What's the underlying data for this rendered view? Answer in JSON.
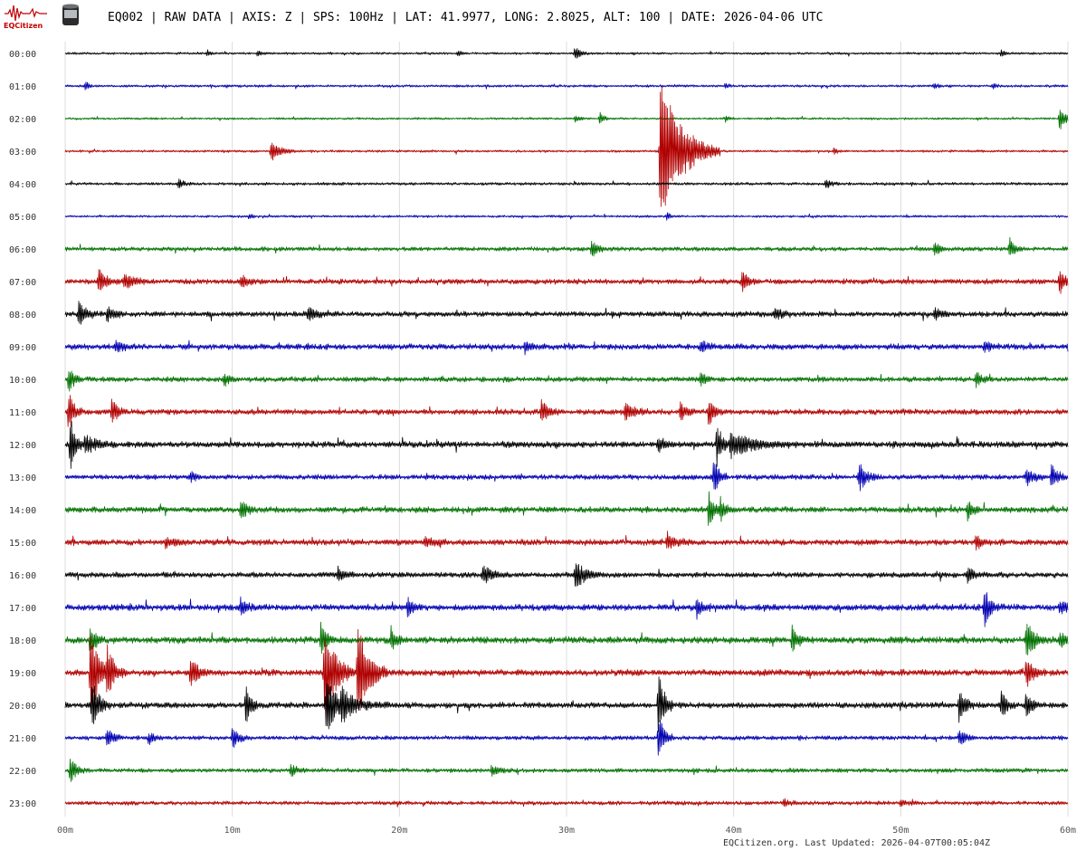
{
  "header": {
    "logo_text": "EQCitizen",
    "title": "EQ002 | RAW DATA | AXIS: Z | SPS: 100Hz | LAT: 41.9977, LONG: 2.8025, ALT: 100 | DATE: 2026-04-06 UTC",
    "logo_color": "#c00000"
  },
  "footer": {
    "text": "EQCitizen.org. Last Updated: 2026-04-07T00:05:04Z"
  },
  "chart_data": {
    "type": "line",
    "grid": true,
    "xlim": [
      0,
      60
    ],
    "x_unit": "minutes",
    "x_ticks": [
      {
        "value": 0,
        "label": "00m"
      },
      {
        "value": 10,
        "label": "10m"
      },
      {
        "value": 20,
        "label": "20m"
      },
      {
        "value": 30,
        "label": "30m"
      },
      {
        "value": 40,
        "label": "40m"
      },
      {
        "value": 50,
        "label": "50m"
      },
      {
        "value": 60,
        "label": "60m"
      }
    ],
    "trace_colors": [
      "#000000",
      "#0000b0",
      "#007000",
      "#b00000"
    ],
    "rows": [
      {
        "label": "00:00",
        "noise": 1.2,
        "events": [
          [
            8.5,
            4,
            0.2
          ],
          [
            11.5,
            3,
            0.2
          ],
          [
            23.5,
            4,
            0.2
          ],
          [
            30.5,
            8,
            0.3
          ],
          [
            56,
            4,
            0.2
          ]
        ]
      },
      {
        "label": "01:00",
        "noise": 1.3,
        "events": [
          [
            1.2,
            5,
            0.2
          ],
          [
            39.5,
            3,
            0.2
          ],
          [
            52,
            3,
            0.2
          ],
          [
            55.5,
            3,
            0.2
          ]
        ]
      },
      {
        "label": "02:00",
        "noise": 1.1,
        "events": [
          [
            30.5,
            4,
            0.3
          ],
          [
            32,
            7,
            0.2
          ],
          [
            39.5,
            4,
            0.2
          ],
          [
            59.5,
            14,
            0.3
          ]
        ]
      },
      {
        "label": "03:00",
        "noise": 1.2,
        "events": [
          [
            12.3,
            12,
            0.5
          ],
          [
            35.6,
            85,
            1.2
          ],
          [
            46,
            4,
            0.2
          ]
        ]
      },
      {
        "label": "04:00",
        "noise": 1.5,
        "events": [
          [
            6.8,
            5,
            0.3
          ],
          [
            45.5,
            5,
            0.3
          ]
        ]
      },
      {
        "label": "05:00",
        "noise": 1.2,
        "events": [
          [
            11,
            3,
            0.2
          ],
          [
            36,
            4,
            0.2
          ]
        ]
      },
      {
        "label": "06:00",
        "noise": 2.2,
        "events": [
          [
            31.5,
            10,
            0.3
          ],
          [
            52,
            8,
            0.3
          ],
          [
            56.5,
            10,
            0.3
          ]
        ]
      },
      {
        "label": "07:00",
        "noise": 2.6,
        "events": [
          [
            2,
            14,
            0.4
          ],
          [
            3.5,
            8,
            0.6
          ],
          [
            10.5,
            6,
            0.5
          ],
          [
            40.5,
            12,
            0.3
          ],
          [
            59.5,
            16,
            0.3
          ]
        ]
      },
      {
        "label": "08:00",
        "noise": 2.8,
        "events": [
          [
            0.8,
            14,
            0.4
          ],
          [
            2.5,
            8,
            0.4
          ],
          [
            14.5,
            6,
            0.5
          ],
          [
            42.5,
            7,
            0.4
          ],
          [
            52,
            6,
            0.4
          ]
        ]
      },
      {
        "label": "09:00",
        "noise": 3.0,
        "events": [
          [
            3,
            6,
            0.4
          ],
          [
            27.5,
            6,
            0.4
          ],
          [
            38,
            6,
            0.4
          ],
          [
            55,
            6,
            0.3
          ]
        ]
      },
      {
        "label": "10:00",
        "noise": 2.6,
        "events": [
          [
            0.2,
            14,
            0.3
          ],
          [
            9.5,
            8,
            0.3
          ],
          [
            38,
            9,
            0.3
          ],
          [
            54.5,
            8,
            0.3
          ]
        ]
      },
      {
        "label": "11:00",
        "noise": 2.8,
        "events": [
          [
            0.2,
            22,
            0.3
          ],
          [
            2.8,
            16,
            0.3
          ],
          [
            28.5,
            12,
            0.4
          ],
          [
            33.5,
            10,
            0.5
          ],
          [
            36.8,
            12,
            0.3
          ],
          [
            38.5,
            16,
            0.3
          ]
        ]
      },
      {
        "label": "12:00",
        "noise": 3.2,
        "events": [
          [
            0.3,
            30,
            0.3
          ],
          [
            1.2,
            10,
            0.6
          ],
          [
            39,
            22,
            0.3
          ],
          [
            39.8,
            14,
            1.2
          ],
          [
            35.5,
            7,
            0.4
          ]
        ]
      },
      {
        "label": "13:00",
        "noise": 2.6,
        "events": [
          [
            7.5,
            6,
            0.3
          ],
          [
            38.8,
            20,
            0.3
          ],
          [
            47.5,
            16,
            0.4
          ],
          [
            57.5,
            10,
            0.4
          ],
          [
            59,
            12,
            0.4
          ]
        ]
      },
      {
        "label": "14:00",
        "noise": 3.0,
        "events": [
          [
            10.5,
            14,
            0.3
          ],
          [
            38.5,
            20,
            0.3
          ],
          [
            39.2,
            12,
            0.3
          ],
          [
            54,
            12,
            0.3
          ]
        ]
      },
      {
        "label": "15:00",
        "noise": 3.0,
        "events": [
          [
            6,
            6,
            0.5
          ],
          [
            21.5,
            6,
            0.5
          ],
          [
            36,
            7,
            0.6
          ],
          [
            54.5,
            10,
            0.3
          ]
        ]
      },
      {
        "label": "16:00",
        "noise": 2.8,
        "events": [
          [
            16.3,
            8,
            0.4
          ],
          [
            25,
            10,
            0.5
          ],
          [
            30.5,
            14,
            0.6
          ],
          [
            54,
            10,
            0.3
          ]
        ]
      },
      {
        "label": "17:00",
        "noise": 3.3,
        "events": [
          [
            10.5,
            10,
            0.3
          ],
          [
            20.5,
            10,
            0.3
          ],
          [
            37.8,
            10,
            0.3
          ],
          [
            55,
            22,
            0.3
          ],
          [
            59.5,
            8,
            0.4
          ]
        ]
      },
      {
        "label": "18:00",
        "noise": 3.4,
        "events": [
          [
            1.5,
            18,
            0.3
          ],
          [
            15.3,
            18,
            0.3
          ],
          [
            19.5,
            14,
            0.3
          ],
          [
            43.5,
            14,
            0.3
          ],
          [
            57.5,
            22,
            0.4
          ],
          [
            59.5,
            10,
            0.4
          ]
        ]
      },
      {
        "label": "19:00",
        "noise": 3.2,
        "events": [
          [
            1.5,
            50,
            0.5
          ],
          [
            2.5,
            26,
            0.4
          ],
          [
            7.5,
            18,
            0.4
          ],
          [
            15.5,
            58,
            0.6
          ],
          [
            17.5,
            62,
            0.6
          ],
          [
            57.5,
            18,
            0.4
          ]
        ]
      },
      {
        "label": "20:00",
        "noise": 3.0,
        "events": [
          [
            1.6,
            28,
            0.4
          ],
          [
            10.8,
            22,
            0.3
          ],
          [
            15.6,
            34,
            0.6
          ],
          [
            16.5,
            14,
            1.0
          ],
          [
            35.5,
            40,
            0.3
          ],
          [
            53.5,
            22,
            0.3
          ],
          [
            56,
            16,
            0.3
          ],
          [
            57.5,
            16,
            0.3
          ]
        ]
      },
      {
        "label": "21:00",
        "noise": 2.2,
        "events": [
          [
            2.5,
            14,
            0.3
          ],
          [
            5,
            6,
            0.3
          ],
          [
            10,
            14,
            0.3
          ],
          [
            35.5,
            30,
            0.3
          ],
          [
            53.5,
            10,
            0.3
          ]
        ]
      },
      {
        "label": "22:00",
        "noise": 2.2,
        "events": [
          [
            0.3,
            16,
            0.3
          ],
          [
            13.5,
            8,
            0.3
          ],
          [
            25.5,
            6,
            0.4
          ]
        ]
      },
      {
        "label": "23:00",
        "noise": 2.0,
        "events": [
          [
            43,
            4,
            0.3
          ],
          [
            50,
            4,
            0.3
          ]
        ]
      }
    ]
  }
}
